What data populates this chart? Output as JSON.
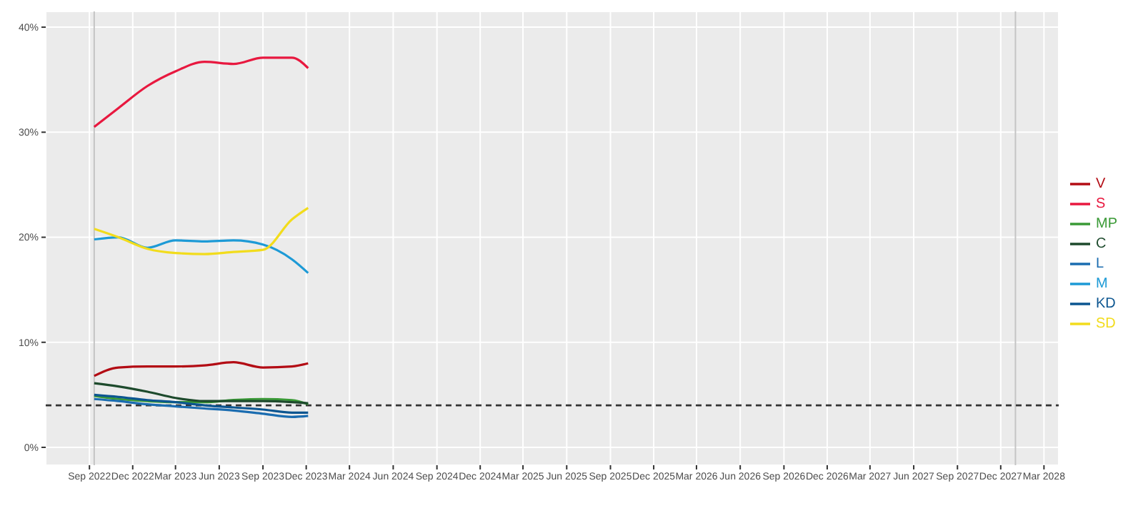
{
  "chart_data": {
    "type": "line",
    "x": [
      "2022-09-11",
      "2022-11-01",
      "2023-01-01",
      "2023-03-01",
      "2023-05-01",
      "2023-07-01",
      "2023-09-01",
      "2023-11-01",
      "2023-12-05"
    ],
    "series": [
      {
        "name": "V",
        "color": "#b30c14",
        "values": [
          6.8,
          7.6,
          7.7,
          7.7,
          7.8,
          8.1,
          7.6,
          7.7,
          8.0
        ]
      },
      {
        "name": "S",
        "color": "#e8183f",
        "values": [
          30.5,
          32.3,
          34.4,
          35.8,
          36.7,
          36.5,
          37.1,
          37.1,
          36.1
        ]
      },
      {
        "name": "MP",
        "color": "#3a9a36",
        "values": [
          4.9,
          4.6,
          4.4,
          4.3,
          4.3,
          4.5,
          4.6,
          4.5,
          4.1
        ]
      },
      {
        "name": "C",
        "color": "#1d4a2c",
        "values": [
          6.1,
          5.8,
          5.3,
          4.7,
          4.4,
          4.4,
          4.4,
          4.3,
          4.2
        ]
      },
      {
        "name": "L",
        "color": "#1a6cb0",
        "values": [
          4.6,
          4.4,
          4.1,
          3.9,
          3.7,
          3.5,
          3.2,
          2.9,
          3.0
        ]
      },
      {
        "name": "M",
        "color": "#1d9ad6",
        "values": [
          19.8,
          20.0,
          19.0,
          19.7,
          19.6,
          19.7,
          19.3,
          17.9,
          16.6
        ]
      },
      {
        "name": "KD",
        "color": "#0b5590",
        "values": [
          5.0,
          4.8,
          4.5,
          4.3,
          4.0,
          3.8,
          3.6,
          3.3,
          3.3
        ]
      },
      {
        "name": "SD",
        "color": "#f2dc1c",
        "values": [
          20.8,
          20.0,
          18.9,
          18.5,
          18.4,
          18.6,
          18.8,
          21.7,
          22.8
        ]
      }
    ],
    "xlim": [
      "2022-06-01",
      "2028-04-01"
    ],
    "xticks": [
      {
        "value": "2022-09-01",
        "label": "Sep 2022"
      },
      {
        "value": "2022-12-01",
        "label": "Dec 2022"
      },
      {
        "value": "2023-03-01",
        "label": "Mar 2023"
      },
      {
        "value": "2023-06-01",
        "label": "Jun 2023"
      },
      {
        "value": "2023-09-01",
        "label": "Sep 2023"
      },
      {
        "value": "2023-12-01",
        "label": "Dec 2023"
      },
      {
        "value": "2024-03-01",
        "label": "Mar 2024"
      },
      {
        "value": "2024-06-01",
        "label": "Jun 2024"
      },
      {
        "value": "2024-09-01",
        "label": "Sep 2024"
      },
      {
        "value": "2024-12-01",
        "label": "Dec 2024"
      },
      {
        "value": "2025-03-01",
        "label": "Mar 2025"
      },
      {
        "value": "2025-06-01",
        "label": "Jun 2025"
      },
      {
        "value": "2025-09-01",
        "label": "Sep 2025"
      },
      {
        "value": "2025-12-01",
        "label": "Dec 2025"
      },
      {
        "value": "2026-03-01",
        "label": "Mar 2026"
      },
      {
        "value": "2026-06-01",
        "label": "Jun 2026"
      },
      {
        "value": "2026-09-01",
        "label": "Sep 2026"
      },
      {
        "value": "2026-12-01",
        "label": "Dec 2026"
      },
      {
        "value": "2027-03-01",
        "label": "Mar 2027"
      },
      {
        "value": "2027-06-01",
        "label": "Jun 2027"
      },
      {
        "value": "2027-09-01",
        "label": "Sep 2027"
      },
      {
        "value": "2027-12-01",
        "label": "Dec 2027"
      },
      {
        "value": "2028-03-01",
        "label": "Mar 2028"
      }
    ],
    "ylim": [
      -1.7,
      41.5
    ],
    "yticks": [
      {
        "value": 0,
        "label": "0%"
      },
      {
        "value": 10,
        "label": "10%"
      },
      {
        "value": 20,
        "label": "20%"
      },
      {
        "value": 30,
        "label": "30%"
      },
      {
        "value": 40,
        "label": "40%"
      }
    ],
    "ref_lines": [
      {
        "axis": "x",
        "value": "2022-09-11",
        "color": "#c4c4c4",
        "line_style": "solid"
      },
      {
        "axis": "x",
        "value": "2028-01-01",
        "color": "#c4c4c4",
        "line_style": "solid"
      },
      {
        "axis": "y",
        "value": 4,
        "color": "#333333",
        "line_style": "dashed"
      }
    ],
    "grid": true,
    "legend": "right",
    "marker": "none",
    "line_style": "solid"
  }
}
